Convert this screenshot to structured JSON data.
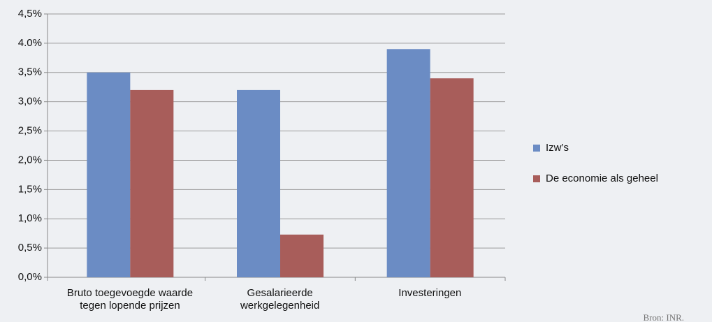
{
  "chart_data": {
    "type": "bar",
    "categories": [
      "Bruto toegevoegde waarde\ntegen lopende prijzen",
      "Gesalarieerde\nwerkgelegenheid",
      "Investeringen"
    ],
    "series": [
      {
        "name": "Izw’s",
        "color": "#6b8cc4",
        "values": [
          3.5,
          3.2,
          3.9
        ]
      },
      {
        "name": "De economie als geheel",
        "color": "#a85d5a",
        "values": [
          3.2,
          0.73,
          3.4
        ]
      }
    ],
    "ylim": [
      0,
      4.5
    ],
    "yticks": [
      {
        "value": 0,
        "label": "0,0%"
      },
      {
        "value": 0.5,
        "label": "0,5%"
      },
      {
        "value": 1,
        "label": "1,0%"
      },
      {
        "value": 1.5,
        "label": "1,5%"
      },
      {
        "value": 2,
        "label": "2,0%"
      },
      {
        "value": 2.5,
        "label": "2,5%"
      },
      {
        "value": 3,
        "label": "3,0%"
      },
      {
        "value": 3.5,
        "label": "3,5%"
      },
      {
        "value": 4,
        "label": "4.0%"
      },
      {
        "value": 4.5,
        "label": "4,5%"
      }
    ],
    "grid": true,
    "legend": "right",
    "source": "Bron: INR."
  }
}
